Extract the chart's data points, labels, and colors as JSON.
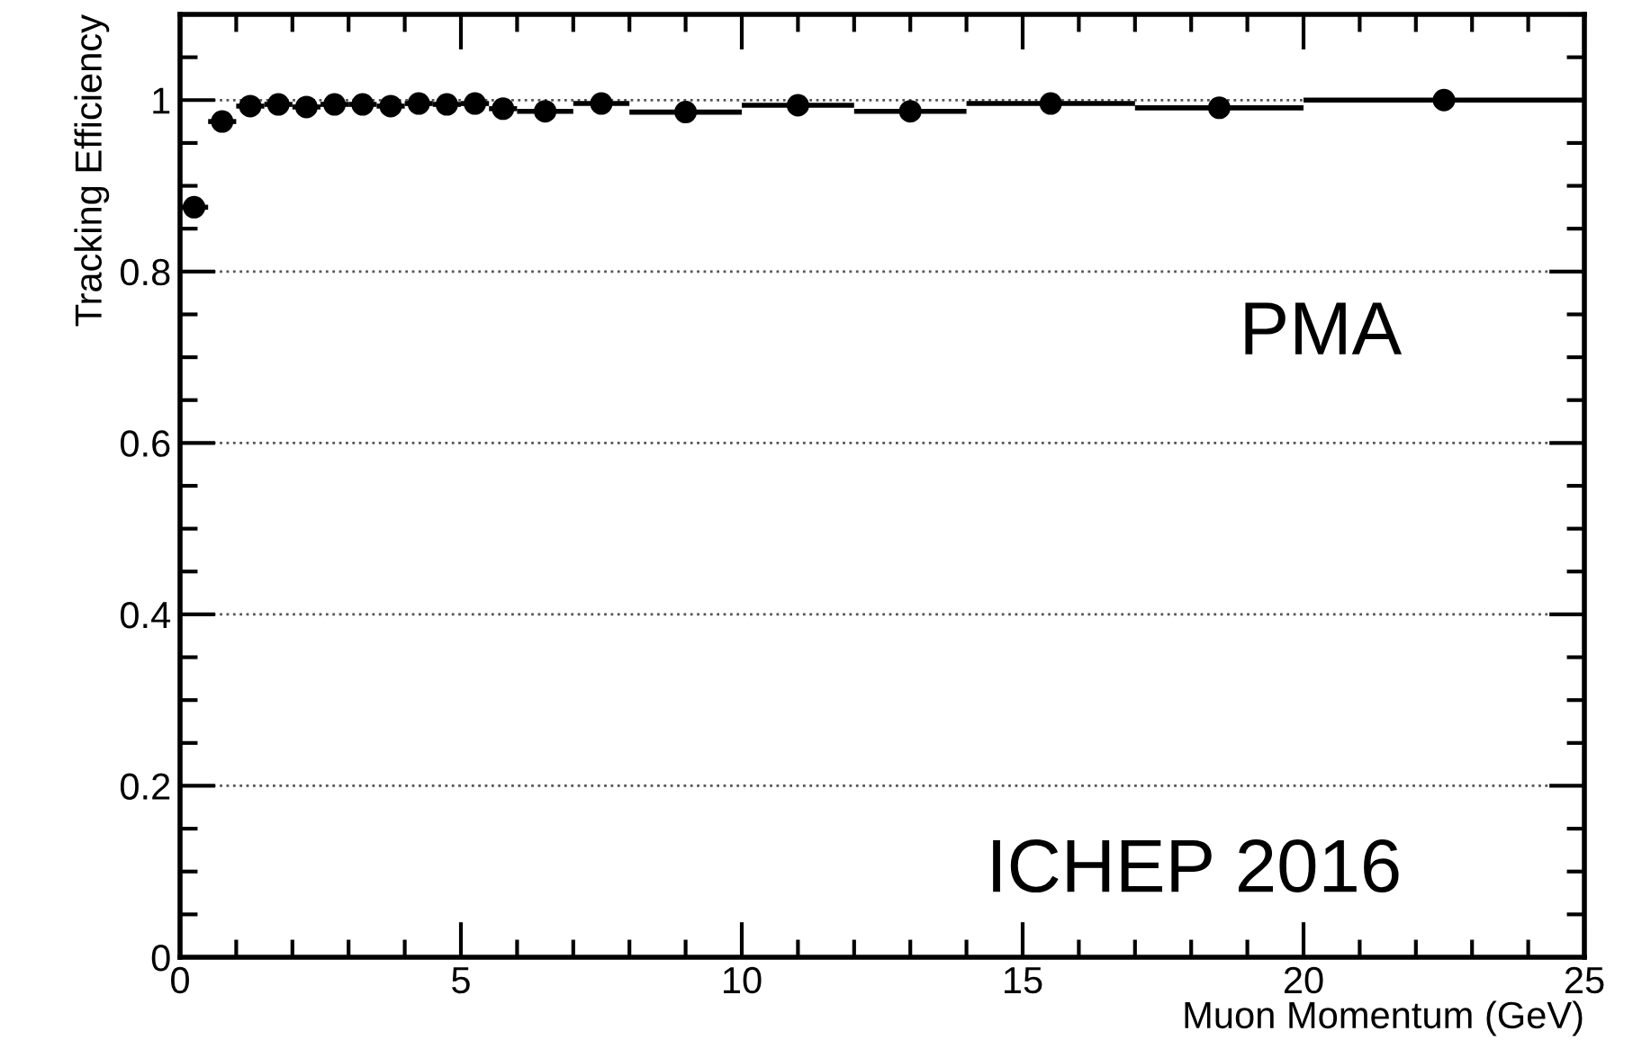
{
  "chart_data": {
    "type": "scatter",
    "xlabel": "Muon Momentum (GeV)",
    "ylabel": "Tracking Efficiency",
    "annotations": [
      "PMA",
      "ICHEP 2016"
    ],
    "x": [
      0.25,
      0.75,
      1.25,
      1.75,
      2.25,
      2.75,
      3.25,
      3.75,
      4.25,
      4.75,
      5.25,
      5.75,
      6.5,
      7.5,
      9,
      11,
      13,
      15.5,
      18.5,
      22.5
    ],
    "series": [
      {
        "color": "#000000",
        "values": [
          0.875,
          0.975,
          0.993,
          0.995,
          0.992,
          0.995,
          0.995,
          0.993,
          0.996,
          0.995,
          0.996,
          0.99,
          0.987,
          0.996,
          0.986,
          0.994,
          0.987,
          0.996,
          0.991,
          1.0
        ],
        "xerrors": [
          0.25,
          0.25,
          0.25,
          0.25,
          0.25,
          0.25,
          0.25,
          0.25,
          0.25,
          0.25,
          0.25,
          0.25,
          0.5,
          0.5,
          1,
          1,
          1,
          1.5,
          1.5,
          2.5
        ]
      }
    ],
    "xlim": [
      0,
      25
    ],
    "ylim": [
      0,
      1.1
    ],
    "xticks": [
      0,
      5,
      10,
      15,
      20,
      25
    ],
    "yticks": [
      0,
      0.2,
      0.4,
      0.6,
      0.8,
      1
    ],
    "grid": "y",
    "marker": "circle",
    "legend": false
  }
}
